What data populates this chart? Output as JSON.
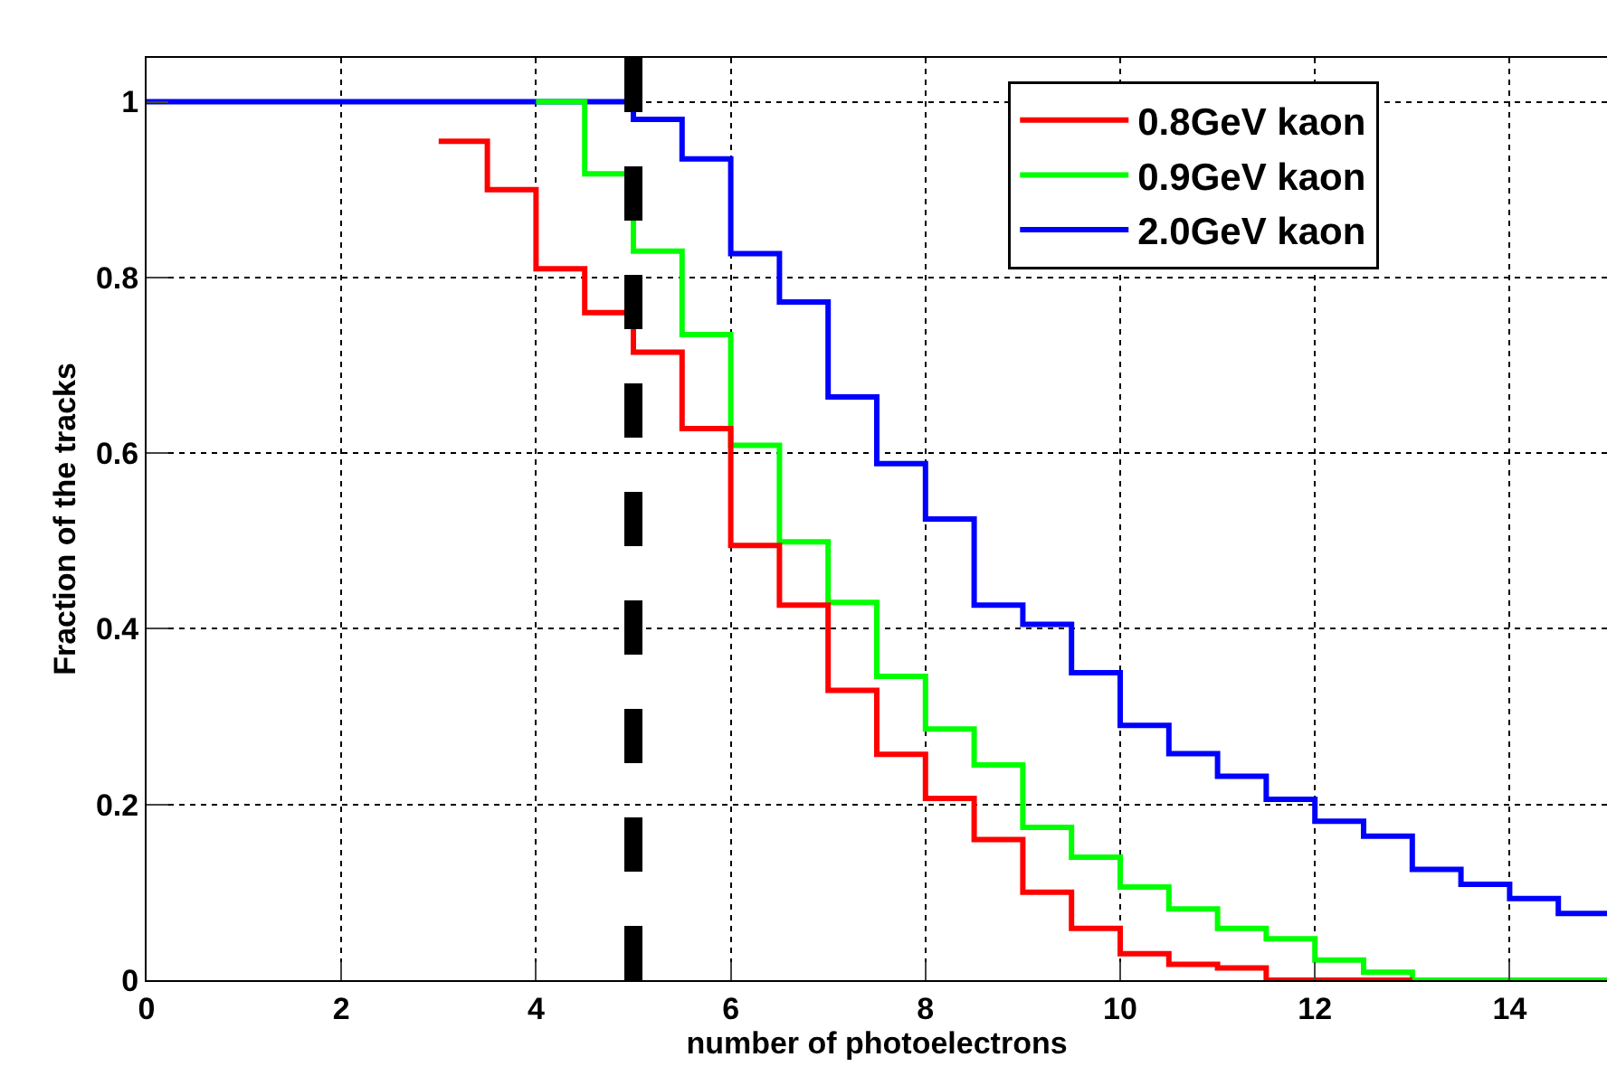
{
  "chart_data": {
    "type": "step",
    "xlabel": "number of photoelectrons",
    "ylabel": "Fraction of the tracks",
    "xlim": [
      0,
      15
    ],
    "ylim": [
      0,
      1.05
    ],
    "xticks": [
      0,
      2,
      4,
      6,
      8,
      10,
      12,
      14
    ],
    "yticks": [
      0,
      0.2,
      0.4,
      0.6,
      0.8,
      1
    ],
    "grid": true,
    "legend": "top right",
    "line_style": "solid",
    "marker": "none",
    "ref_lines": [
      {
        "axis": "x",
        "value": 5,
        "color": "#000000",
        "line_style": "dashed"
      }
    ],
    "series": [
      {
        "name": "0.8GeV kaon",
        "color": "#ff0000",
        "x": [
          3,
          3.5,
          4,
          4.5,
          5,
          5.5,
          6,
          6.5,
          7,
          7.5,
          8,
          8.5,
          9,
          9.5,
          10,
          10.5,
          11,
          11.5,
          12,
          12.5,
          13
        ],
        "values": [
          0.955,
          0.9,
          0.81,
          0.76,
          0.715,
          0.628,
          0.495,
          0.427,
          0.33,
          0.257,
          0.207,
          0.16,
          0.1,
          0.059,
          0.03,
          0.018,
          0.014,
          0,
          0,
          0,
          0
        ]
      },
      {
        "name": "0.9GeV kaon",
        "color": "#00ff00",
        "x": [
          4,
          4.5,
          5,
          5.5,
          6,
          6.5,
          7,
          7.5,
          8,
          8.5,
          9,
          9.5,
          10,
          10.5,
          11,
          11.5,
          12,
          12.5,
          13,
          13.5,
          14,
          14.5,
          15
        ],
        "values": [
          1,
          0.918,
          0.83,
          0.735,
          0.609,
          0.499,
          0.43,
          0.346,
          0.286,
          0.245,
          0.174,
          0.14,
          0.106,
          0.081,
          0.059,
          0.047,
          0.023,
          0.009,
          0,
          0,
          0,
          0,
          0
        ]
      },
      {
        "name": "2.0GeV kaon",
        "color": "#0000ff",
        "x": [
          0,
          0.5,
          1,
          1.5,
          2,
          2.5,
          3,
          3.5,
          4,
          4.5,
          5,
          5.5,
          6,
          6.5,
          7,
          7.5,
          8,
          8.5,
          9,
          9.5,
          10,
          10.5,
          11,
          11.5,
          12,
          12.5,
          13,
          13.5,
          14,
          14.5,
          15
        ],
        "values": [
          1,
          1,
          1,
          1,
          1,
          1,
          1,
          1,
          1,
          1,
          0.98,
          0.935,
          0.827,
          0.772,
          0.664,
          0.588,
          0.525,
          0.427,
          0.405,
          0.35,
          0.29,
          0.258,
          0.232,
          0.206,
          0.181,
          0.164,
          0.126,
          0.109,
          0.093,
          0.076,
          0.076
        ]
      }
    ]
  }
}
